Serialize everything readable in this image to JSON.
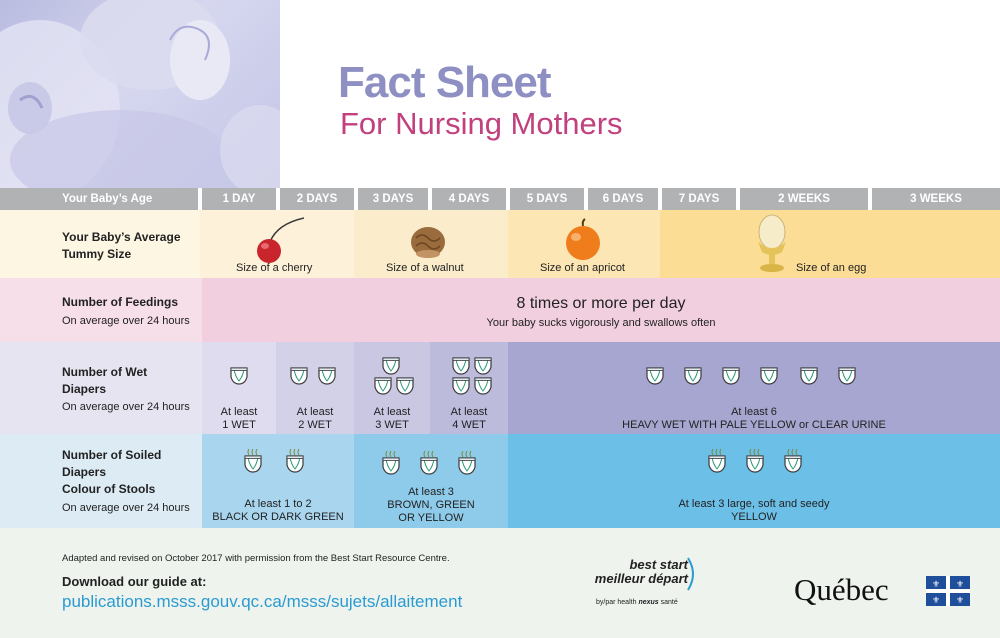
{
  "header": {
    "title": "Fact Sheet",
    "subtitle": "For Nursing Mothers",
    "hero_image": "baby-nursing-photo"
  },
  "columns": {
    "age_label": "Your Baby’s Age",
    "days": [
      "1 DAY",
      "2 DAYS",
      "3 DAYS",
      "4 DAYS",
      "5 DAYS",
      "6 DAYS",
      "7 DAYS",
      "2 WEEKS",
      "3 WEEKS"
    ]
  },
  "rows": {
    "tummy": {
      "label_line1": "Your Baby’s Average",
      "label_line2": "Tummy Size",
      "items": [
        {
          "icon": "cherry-icon",
          "caption": "Size of a cherry"
        },
        {
          "icon": "walnut-icon",
          "caption": "Size of a walnut"
        },
        {
          "icon": "apricot-icon",
          "caption": "Size of an apricot"
        },
        {
          "icon": "egg-icon",
          "caption": "Size of an egg"
        }
      ]
    },
    "feedings": {
      "label": "Number of Feedings",
      "sub": "On average over 24 hours",
      "main": "8 times or more per day",
      "detail": "Your baby sucks vigorously and swallows often"
    },
    "wet": {
      "label_line1": "Number of Wet",
      "label_line2": "Diapers",
      "sub": "On average over 24 hours",
      "cells": [
        {
          "count": 1,
          "line1": "At least",
          "line2": "1 WET"
        },
        {
          "count": 2,
          "line1": "At least",
          "line2": "2 WET"
        },
        {
          "count": 3,
          "line1": "At least",
          "line2": "3 WET"
        },
        {
          "count": 4,
          "line1": "At least",
          "line2": "4 WET"
        },
        {
          "count": 6,
          "line1": "At least 6",
          "line2": "HEAVY WET WITH PALE YELLOW or CLEAR URINE"
        }
      ]
    },
    "soiled": {
      "label_line1": "Number of Soiled",
      "label_line2": "Diapers",
      "label_line3": "Colour of Stools",
      "sub": "On average over 24 hours",
      "cells": [
        {
          "count": 2,
          "line1": "At least 1 to 2",
          "line2": "BLACK OR DARK GREEN"
        },
        {
          "count": 3,
          "line1": "At least 3",
          "line2": "BROWN, GREEN",
          "line3": "OR YELLOW"
        },
        {
          "count": 3,
          "line1": "At least 3 large, soft and seedy",
          "line2": "YELLOW"
        }
      ]
    }
  },
  "footer": {
    "credit": "Adapted and revised on October 2017 with permission from the Best Start Resource Centre.",
    "download_label": "Download our guide at:",
    "link": "publications.msss.gouv.qc.ca/msss/sujets/allaitement",
    "bs_line1": "best start",
    "bs_line2": "meilleur départ",
    "bs_by": "by/par health",
    "bs_nexus": "nexus",
    "bs_sante": "santé",
    "quebec": "Québec"
  },
  "colors": {
    "title_purple": "#8e8fc2",
    "subtitle_pink": "#c1407d",
    "header_grey": "#b0b2b4",
    "link_blue": "#2a9bd1",
    "quebec_blue": "#1f4e9a"
  }
}
